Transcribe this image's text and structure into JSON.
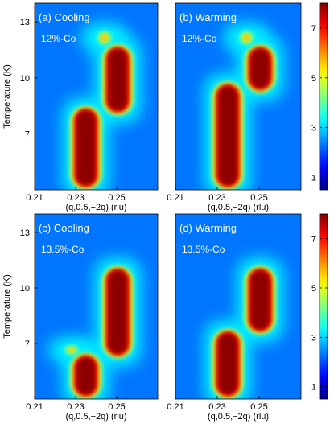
{
  "figure": {
    "colormap": "jet",
    "colors": {
      "low": "#00008f",
      "mid": "#19c0ff",
      "high": "#800000"
    }
  },
  "chart_data": [
    {
      "type": "heatmap",
      "panel_label": "(a) Cooling",
      "sample": "12%-Co",
      "xlabel": "(q,0.5,−2q) (rlu)",
      "ylabel": "Temperature (K)",
      "xlim": [
        0.21,
        0.27
      ],
      "ylim": [
        4,
        14
      ],
      "x_ticks": [
        "0.21",
        "0.23",
        "0.25"
      ],
      "y_ticks": [
        "7",
        "10",
        "13"
      ],
      "colorbar": {
        "range": [
          0.5,
          8
        ],
        "ticks": [
          "1",
          "3",
          "5",
          "7"
        ]
      },
      "features": [
        {
          "x": 0.235,
          "y_range": [
            4,
            8.5
          ],
          "intensity": 9
        },
        {
          "x": 0.2505,
          "y_range": [
            8,
            11.8
          ],
          "intensity": 9
        },
        {
          "x": 0.244,
          "y_range": [
            11.8,
            12.5
          ],
          "intensity": 6
        }
      ]
    },
    {
      "type": "heatmap",
      "panel_label": "(b) Warming",
      "sample": "12%-Co",
      "xlabel": "(q,0.5,−2q) (rlu)",
      "ylabel": "",
      "xlim": [
        0.21,
        0.27
      ],
      "ylim": [
        4,
        14
      ],
      "x_ticks": [
        "0.21",
        "0.23",
        "0.25"
      ],
      "y_ticks": [],
      "colorbar": {
        "range": [
          0.5,
          8
        ],
        "ticks": [
          "1",
          "3",
          "5",
          "7"
        ]
      },
      "features": [
        {
          "x": 0.235,
          "y_range": [
            4,
            9.8
          ],
          "intensity": 9
        },
        {
          "x": 0.2505,
          "y_range": [
            9.2,
            11.8
          ],
          "intensity": 9
        },
        {
          "x": 0.244,
          "y_range": [
            11.8,
            12.5
          ],
          "intensity": 6
        }
      ]
    },
    {
      "type": "heatmap",
      "panel_label": "(c) Cooling",
      "sample": "13.5%-Co",
      "xlabel": "(q,0.5,−2q) (rlu)",
      "ylabel": "Temperature (K)",
      "xlim": [
        0.21,
        0.27
      ],
      "ylim": [
        4,
        14
      ],
      "x_ticks": [
        "0.21",
        "0.23",
        "0.25"
      ],
      "y_ticks": [
        "7",
        "10",
        "13"
      ],
      "colorbar": {
        "range": [
          0.5,
          8
        ],
        "ticks": [
          "1",
          "3",
          "5",
          "7"
        ]
      },
      "features": [
        {
          "x": 0.235,
          "y_range": [
            4,
            6.5
          ],
          "intensity": 9
        },
        {
          "x": 0.2505,
          "y_range": [
            6.2,
            11.2
          ],
          "intensity": 9
        },
        {
          "x": 0.228,
          "y_range": [
            6.4,
            6.9
          ],
          "intensity": 4
        }
      ]
    },
    {
      "type": "heatmap",
      "panel_label": "(d) Warming",
      "sample": "13.5%-Co",
      "xlabel": "(q,0.5,−2q) (rlu)",
      "ylabel": "",
      "xlim": [
        0.21,
        0.27
      ],
      "ylim": [
        4,
        14
      ],
      "x_ticks": [
        "0.21",
        "0.23",
        "0.25"
      ],
      "y_ticks": [],
      "colorbar": {
        "range": [
          0.5,
          8
        ],
        "ticks": [
          "1",
          "3",
          "5",
          "7"
        ]
      },
      "features": [
        {
          "x": 0.235,
          "y_range": [
            4,
            7.8
          ],
          "intensity": 9
        },
        {
          "x": 0.2505,
          "y_range": [
            7.5,
            11.2
          ],
          "intensity": 9
        }
      ]
    }
  ]
}
